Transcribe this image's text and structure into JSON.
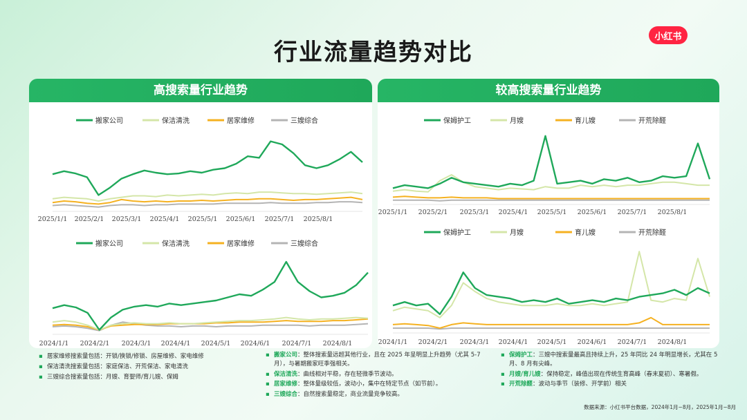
{
  "page": {
    "title": "行业流量趋势对比",
    "brand": "小红书",
    "source": "数据来源：小红书平台数据，2024年1月~8月，2025年1月~8月"
  },
  "panels": {
    "left": {
      "title": "高搜索量行业趋势"
    },
    "right": {
      "title": "较高搜索量行业趋势"
    }
  },
  "colors": {
    "green": "#1fa85a",
    "lightgreen": "#d4e6a8",
    "orange": "#f5b120",
    "gray": "#b4b4b4",
    "header": "#26b565"
  },
  "chart_data": [
    {
      "id": "high-2025",
      "type": "line",
      "x_labels": [
        "2025/1/1",
        "2025/2/1",
        "2025/3/1",
        "2025/4/1",
        "2025/5/1",
        "2025/6/1",
        "2025/7/1",
        "2025/8/1"
      ],
      "legend": "top-center",
      "series": [
        {
          "name": "搬家公司",
          "color": "green",
          "values": [
            48,
            52,
            49,
            44,
            20,
            30,
            42,
            48,
            53,
            50,
            48,
            49,
            52,
            50,
            54,
            56,
            62,
            72,
            70,
            92,
            88,
            76,
            60,
            56,
            60,
            68,
            78,
            64
          ]
        },
        {
          "name": "保洁清洗",
          "color": "lightgreen",
          "values": [
            15,
            17,
            16,
            15,
            12,
            15,
            17,
            19,
            19,
            18,
            20,
            19,
            20,
            21,
            20,
            22,
            23,
            22,
            24,
            24,
            23,
            22,
            22,
            21,
            22,
            23,
            24,
            22
          ]
        },
        {
          "name": "居家维修",
          "color": "orange",
          "values": [
            10,
            12,
            11,
            9,
            8,
            10,
            14,
            12,
            11,
            12,
            11,
            12,
            12,
            13,
            12,
            13,
            14,
            14,
            15,
            15,
            14,
            13,
            14,
            14,
            15,
            16,
            17,
            14
          ]
        },
        {
          "name": "三嫂综合",
          "color": "gray",
          "values": [
            6,
            7,
            6,
            5,
            4,
            6,
            7,
            7,
            6,
            7,
            7,
            8,
            8,
            8,
            8,
            9,
            9,
            9,
            9,
            10,
            9,
            9,
            9,
            10,
            10,
            11,
            11,
            10
          ]
        }
      ]
    },
    {
      "id": "high-2024",
      "type": "line",
      "x_labels": [
        "2024/1/1",
        "2024/2/1",
        "2024/3/1",
        "2024/4/1",
        "2024/5/1",
        "2024/6/1",
        "2024/7/1",
        "2024/8/1"
      ],
      "legend": "top-center",
      "series": [
        {
          "name": "搬家公司",
          "color": "green",
          "values": [
            32,
            36,
            33,
            26,
            4,
            20,
            30,
            34,
            36,
            34,
            38,
            36,
            38,
            40,
            42,
            46,
            50,
            48,
            56,
            66,
            92,
            66,
            54,
            46,
            48,
            52,
            62,
            78
          ]
        },
        {
          "name": "保洁清洗",
          "color": "lightgreen",
          "values": [
            14,
            16,
            14,
            10,
            4,
            10,
            12,
            13,
            12,
            12,
            13,
            12,
            12,
            13,
            14,
            15,
            16,
            16,
            17,
            18,
            20,
            18,
            17,
            18,
            18,
            19,
            20,
            19
          ]
        },
        {
          "name": "居家维修",
          "color": "orange",
          "values": [
            10,
            11,
            10,
            8,
            4,
            9,
            10,
            11,
            11,
            11,
            12,
            12,
            12,
            12,
            13,
            13,
            14,
            14,
            14,
            15,
            16,
            15,
            15,
            15,
            16,
            16,
            17,
            18
          ]
        },
        {
          "name": "三嫂综合",
          "color": "gray",
          "values": [
            8,
            9,
            8,
            6,
            3,
            10,
            14,
            12,
            10,
            9,
            9,
            8,
            9,
            9,
            8,
            9,
            9,
            9,
            10,
            10,
            10,
            10,
            9,
            10,
            10,
            10,
            11,
            12
          ]
        }
      ]
    },
    {
      "id": "mid-2025",
      "type": "line",
      "x_labels": [
        "2025/1/1",
        "2025/2/1",
        "2025/3/1",
        "2025/4/1",
        "2025/5/1",
        "2025/6/1",
        "2025/7/1",
        "2025/8/1"
      ],
      "legend": "top-center",
      "series": [
        {
          "name": "保姆护工",
          "color": "green",
          "values": [
            20,
            24,
            22,
            20,
            26,
            34,
            28,
            26,
            24,
            22,
            26,
            24,
            30,
            90,
            26,
            28,
            30,
            26,
            32,
            30,
            34,
            28,
            30,
            36,
            34,
            36,
            80,
            32
          ]
        },
        {
          "name": "月嫂",
          "color": "lightgreen",
          "values": [
            16,
            18,
            16,
            15,
            30,
            38,
            28,
            22,
            20,
            18,
            20,
            19,
            18,
            22,
            20,
            20,
            24,
            22,
            24,
            22,
            24,
            24,
            26,
            28,
            28,
            26,
            24,
            24
          ]
        },
        {
          "name": "育儿嫂",
          "color": "orange",
          "values": [
            8,
            9,
            8,
            7,
            7,
            8,
            7,
            7,
            7,
            6,
            6,
            6,
            6,
            6,
            6,
            6,
            6,
            6,
            6,
            6,
            6,
            6,
            6,
            6,
            6,
            6,
            6,
            6
          ]
        },
        {
          "name": "开荒除醛",
          "color": "gray",
          "values": [
            4,
            4,
            4,
            4,
            3,
            4,
            4,
            4,
            4,
            4,
            4,
            4,
            4,
            4,
            4,
            4,
            4,
            4,
            4,
            4,
            4,
            4,
            4,
            4,
            4,
            4,
            4,
            4
          ]
        }
      ]
    },
    {
      "id": "mid-2024",
      "type": "line",
      "x_labels": [
        "2024/1/1",
        "2024/2/1",
        "2024/3/1",
        "2024/4/1",
        "2024/5/1",
        "2024/6/1",
        "2024/7/1",
        "2024/8/1"
      ],
      "legend": "top-center",
      "series": [
        {
          "name": "保姆护工",
          "color": "green",
          "values": [
            30,
            34,
            30,
            32,
            20,
            40,
            68,
            50,
            42,
            40,
            38,
            34,
            36,
            34,
            38,
            32,
            34,
            36,
            34,
            38,
            36,
            40,
            42,
            44,
            48,
            42,
            50,
            44
          ]
        },
        {
          "name": "月嫂",
          "color": "lightgreen",
          "values": [
            24,
            28,
            26,
            24,
            16,
            30,
            56,
            46,
            38,
            34,
            32,
            30,
            30,
            30,
            32,
            30,
            30,
            32,
            30,
            32,
            34,
            92,
            36,
            34,
            38,
            36,
            84,
            40
          ]
        },
        {
          "name": "育儿嫂",
          "color": "orange",
          "values": [
            8,
            9,
            8,
            7,
            4,
            8,
            10,
            9,
            8,
            8,
            8,
            8,
            8,
            8,
            8,
            8,
            8,
            8,
            8,
            8,
            8,
            10,
            16,
            8,
            8,
            8,
            8,
            8
          ]
        },
        {
          "name": "开荒除醛",
          "color": "gray",
          "values": [
            4,
            4,
            4,
            4,
            3,
            4,
            4,
            4,
            4,
            4,
            4,
            4,
            4,
            4,
            4,
            4,
            4,
            4,
            4,
            4,
            4,
            4,
            4,
            4,
            4,
            4,
            4,
            4
          ]
        }
      ]
    }
  ],
  "notes_left": [
    "居家维修搜索量包括：开锁/换锁/修锁、房屋维修、家电维修",
    "保洁清洗搜索量包括：家庭保洁、开荒保洁、家电清洗",
    "三嫂综合搜索量包括：月嫂、育婴师/育儿嫂、保姆"
  ],
  "notes_mid": [
    {
      "key": "搬家公司",
      "text": "：整体搜索量远超其他行业，且在 2025 年呈明显上升趋势（尤其 5-7 月），与暑期搬家旺季强相关。"
    },
    {
      "key": "保洁清洗",
      "text": "：曲线相对平稳，存在轻微季节波动。"
    },
    {
      "key": "居家维修",
      "text": "：整体量级较低，波动小，集中在特定节点（如节前）。"
    },
    {
      "key": "三嫂综合",
      "text": "：自然搜索量稳定，商业流量竞争较高。"
    }
  ],
  "notes_right": [
    {
      "key": "保姆护工",
      "text": "：三嫂中搜索量最高且持续上升，25 年同比 24 年明显增长，尤其在 5 月、8 月有尖峰。"
    },
    {
      "key": "月嫂/育儿嫂",
      "text": "：保持稳定，峰值出现在传统生育高峰（春末夏初）、寒暑假。"
    },
    {
      "key": "开荒除醛",
      "text": "：波动与季节（装修、开学前）相关"
    }
  ]
}
